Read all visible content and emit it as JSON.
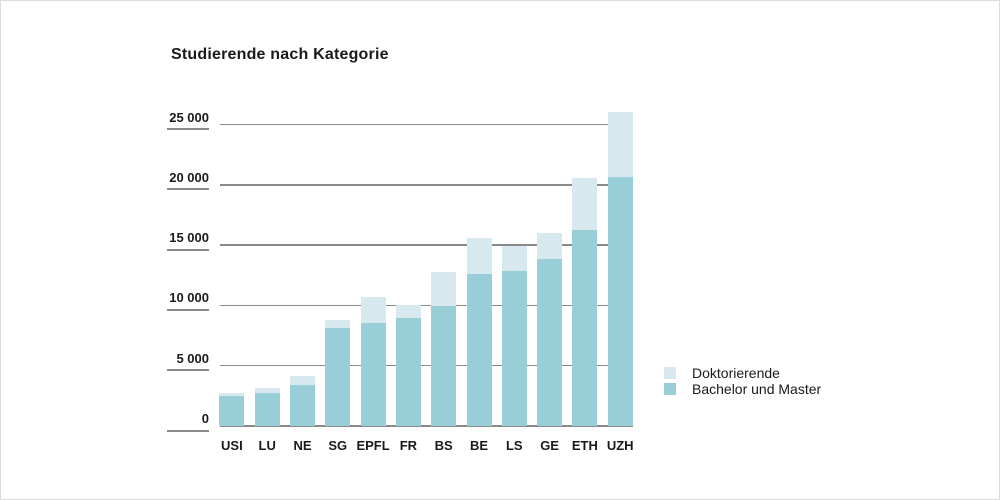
{
  "page": {
    "background": "#ffffff",
    "border_color": "#dcdcdc"
  },
  "colors": {
    "bachelor": "#97ced7",
    "doctoral": "#d7e9ef",
    "gridline": "#8a8a8a",
    "text": "#1a1a1a"
  },
  "chart_data": {
    "type": "bar",
    "stacked": true,
    "title": "Studierende nach Kategorie",
    "categories": [
      "USI",
      "LU",
      "NE",
      "SG",
      "EPFL",
      "FR",
      "BS",
      "BE",
      "LS",
      "GE",
      "ETH",
      "UZH"
    ],
    "series": [
      {
        "name": "Bachelor und Master",
        "color": "#97ced7",
        "values": [
          2300,
          2550,
          3250,
          7950,
          8400,
          8800,
          9750,
          12400,
          12650,
          13700,
          16100,
          20500
        ]
      },
      {
        "name": "Doktorierende",
        "color": "#d7e9ef",
        "values": [
          300,
          450,
          700,
          700,
          2100,
          1100,
          2850,
          3000,
          2100,
          2150,
          4300,
          5400
        ]
      }
    ],
    "totals": [
      2600,
      3000,
      3950,
      8650,
      10500,
      9900,
      12600,
      15400,
      14750,
      15850,
      20400,
      25900
    ],
    "xlabel": "",
    "ylabel": "",
    "ylim": [
      0,
      25000
    ],
    "ytick_step": 5000,
    "ytick_labels": [
      "0",
      "5 000",
      "10 000",
      "15 000",
      "20 000",
      "25 000"
    ],
    "grid": true,
    "legend_position": "right-bottom",
    "legend_order": [
      "Doktorierende",
      "Bachelor und Master"
    ]
  }
}
